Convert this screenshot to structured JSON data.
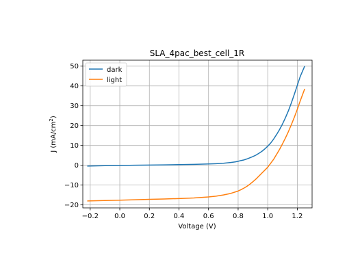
{
  "chart_data": {
    "type": "line",
    "title": "SLA_4pac_best_cell_1R",
    "xlabel": "Voltage (V)",
    "ylabel_main": "J (mA/cm",
    "ylabel_sup": "2",
    "ylabel_close": ")",
    "xlim": [
      -0.25,
      1.3
    ],
    "ylim": [
      -21.5,
      53
    ],
    "xticks": [
      -0.2,
      0.0,
      0.2,
      0.4,
      0.6,
      0.8,
      1.0,
      1.2
    ],
    "xtick_labels": [
      "−0.2",
      "0.0",
      "0.2",
      "0.4",
      "0.6",
      "0.8",
      "1.0",
      "1.2"
    ],
    "yticks": [
      -20,
      -10,
      0,
      10,
      20,
      30,
      40,
      50
    ],
    "ytick_labels": [
      "−20",
      "−10",
      "0",
      "10",
      "20",
      "30",
      "40",
      "50"
    ],
    "grid": true,
    "legend_position": "top-left",
    "series": [
      {
        "name": "dark",
        "color": "#1f77b4",
        "x": [
          -0.22,
          -0.1,
          0.0,
          0.1,
          0.2,
          0.3,
          0.4,
          0.5,
          0.6,
          0.65,
          0.7,
          0.75,
          0.78,
          0.8,
          0.82,
          0.84,
          0.86,
          0.88,
          0.9,
          0.92,
          0.94,
          0.96,
          0.98,
          1.0,
          1.02,
          1.04,
          1.06,
          1.08,
          1.1,
          1.12,
          1.14,
          1.16,
          1.18,
          1.2,
          1.22,
          1.25
        ],
        "y": [
          -0.4,
          -0.2,
          -0.1,
          0.0,
          0.1,
          0.2,
          0.3,
          0.45,
          0.65,
          0.8,
          1.0,
          1.4,
          1.7,
          2.0,
          2.4,
          2.7,
          3.2,
          3.8,
          4.4,
          5.1,
          6.0,
          7.0,
          8.2,
          9.6,
          11.2,
          13.2,
          15.5,
          18.0,
          20.8,
          24.0,
          27.5,
          31.5,
          35.8,
          40.3,
          44.8,
          50.0
        ]
      },
      {
        "name": "light",
        "color": "#ff7f0e",
        "x": [
          -0.22,
          -0.1,
          0.0,
          0.1,
          0.2,
          0.3,
          0.4,
          0.5,
          0.6,
          0.65,
          0.7,
          0.75,
          0.8,
          0.82,
          0.84,
          0.86,
          0.88,
          0.9,
          0.92,
          0.94,
          0.96,
          0.98,
          1.0,
          1.02,
          1.04,
          1.06,
          1.08,
          1.1,
          1.12,
          1.14,
          1.16,
          1.18,
          1.2,
          1.22,
          1.25
        ],
        "y": [
          -18.0,
          -17.8,
          -17.6,
          -17.4,
          -17.2,
          -17.0,
          -16.8,
          -16.5,
          -16.0,
          -15.6,
          -15.0,
          -14.2,
          -13.0,
          -12.3,
          -11.5,
          -10.6,
          -9.5,
          -8.3,
          -7.0,
          -5.5,
          -4.0,
          -2.5,
          -1.0,
          1.0,
          3.0,
          5.5,
          8.0,
          10.8,
          13.8,
          17.0,
          20.5,
          24.2,
          28.2,
          32.5,
          38.5
        ]
      }
    ]
  }
}
